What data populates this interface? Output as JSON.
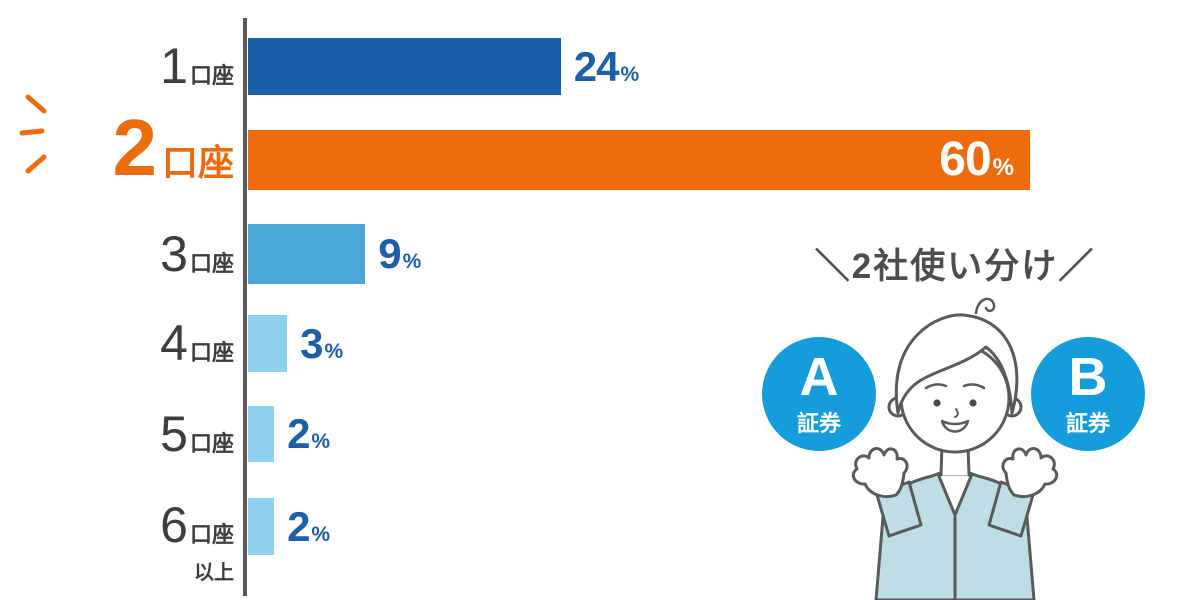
{
  "chart_data": {
    "type": "bar",
    "orientation": "horizontal",
    "categories": [
      "1口座",
      "2口座",
      "3口座",
      "4口座",
      "5口座",
      "6口座以上"
    ],
    "values": [
      24,
      60,
      9,
      3,
      2,
      2
    ],
    "unit": "%",
    "xlim": [
      0,
      60
    ],
    "highlight_index": 1,
    "grid": false,
    "legend": null
  },
  "rows": [
    {
      "num": "1",
      "suffix": "口座",
      "value": 24,
      "unit": "%"
    },
    {
      "num": "2",
      "suffix": "口座",
      "value": 60,
      "unit": "%"
    },
    {
      "num": "3",
      "suffix": "口座",
      "value": 9,
      "unit": "%"
    },
    {
      "num": "4",
      "suffix": "口座",
      "value": 3,
      "unit": "%"
    },
    {
      "num": "5",
      "suffix": "口座",
      "value": 2,
      "unit": "%"
    },
    {
      "num": "6",
      "suffix": "口座",
      "suffix2": "以上",
      "value": 2,
      "unit": "%"
    }
  ],
  "annotation": {
    "title": "＼2社使い分け／",
    "badges": [
      {
        "letter": "A",
        "label": "証券"
      },
      {
        "letter": "B",
        "label": "証券"
      }
    ]
  },
  "colors": {
    "bar_dark_blue": "#1d5fa9",
    "bar_highlight_orange": "#ec6c0d",
    "bar_medium_blue": "#4ba5d9",
    "bar_light_blue": "#8ed1ed",
    "value_text_blue": "#1d5fa9",
    "highlight_text_orange": "#ec6c0d",
    "category_text": "#3d3d3d",
    "axis_gray": "#58595b",
    "badge_blue": "#149cdb",
    "annotation_text": "#4d4d4d",
    "jacket_blue": "#bedde5",
    "outline_gray": "#5a5a5a"
  }
}
